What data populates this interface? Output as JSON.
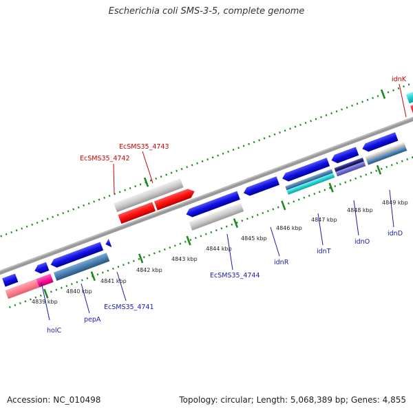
{
  "header": {
    "title": "Escherichia coli SMS-3-5, complete genome"
  },
  "footer": {
    "accession": "Accession: NC_010498",
    "topology": "Topology: circular; Length: 5,068,389 bp; Genes: 4,855"
  },
  "ruler": {
    "ticks": [
      "4839 kbp",
      "4840 kbp",
      "4841 kbp",
      "4842 kbp",
      "4843 kbp",
      "4844 kbp",
      "4845 kbp",
      "4846 kbp",
      "4847 kbp",
      "4848 kbp",
      "4849 kbp"
    ]
  },
  "genes": {
    "forward": [
      "EcSMS35_4742",
      "EcSMS35_4743",
      "idnK"
    ],
    "reverse": [
      "holC",
      "pepA",
      "EcSMS35_4741",
      "EcSMS35_4744",
      "idnR",
      "idnT",
      "idnO",
      "idnD"
    ]
  },
  "colors": {
    "forward_label": "#cc0000",
    "reverse_label": "#1a1aaa",
    "reverse_gene": "#1010e0",
    "forward_gene": "#ff1a1a",
    "ruler_dots": "#1a8a1a",
    "backbone": "#888888"
  }
}
